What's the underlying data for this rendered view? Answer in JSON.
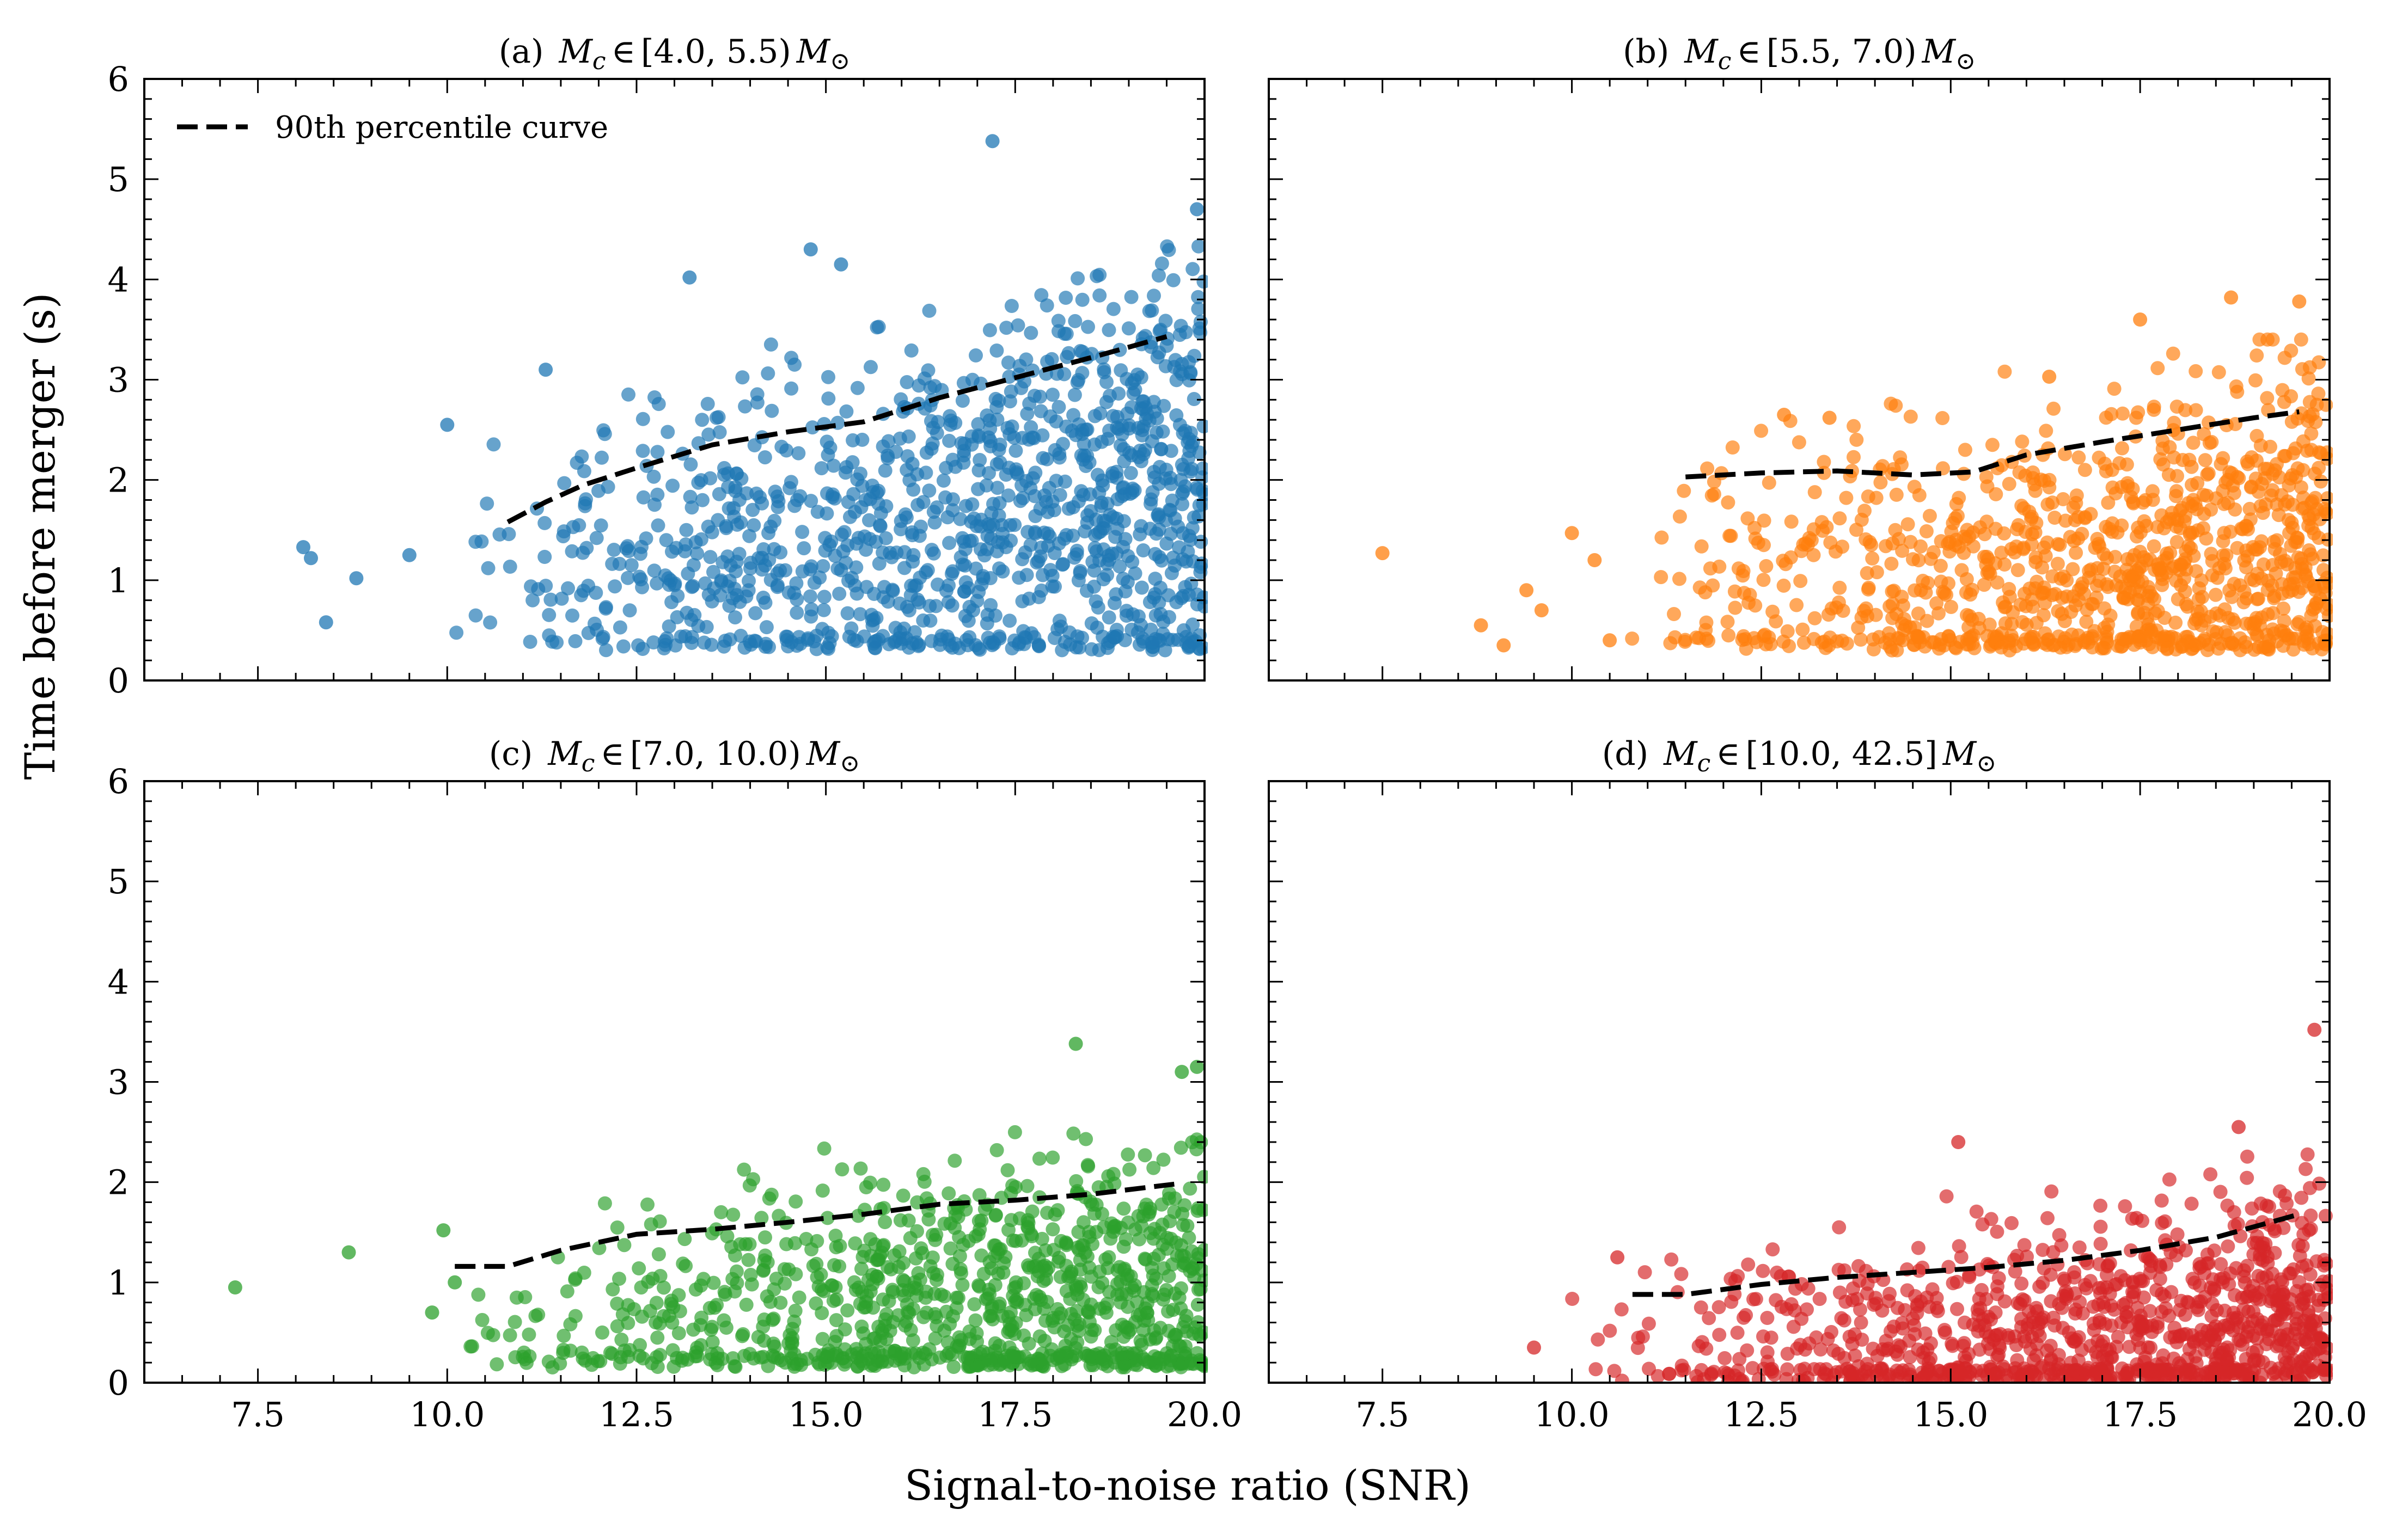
{
  "figure": {
    "ylabel": "Time before merger (s)",
    "xlabel": "Signal-to-noise ratio (SNR)",
    "legend": {
      "label": "90th percentile curve",
      "placement": "top-left",
      "panel": 0
    }
  },
  "chart_data": [
    {
      "type": "scatter",
      "title": "(a)  Mc ∈ [4.0, 5.5) M⊙",
      "title_prefix": "(a)",
      "title_range": "[4.0, 5.5)",
      "color": "#1f77b4",
      "xlim": [
        6.0,
        20.0
      ],
      "ylim": [
        0,
        6
      ],
      "xticks": [
        "7.5",
        "10.0",
        "12.5",
        "15.0",
        "17.5",
        "20.0"
      ],
      "yticks": [
        "0",
        "1",
        "2",
        "3",
        "4",
        "5",
        "6"
      ],
      "show_xticklabels": false,
      "show_yticklabels": true,
      "series": [
        {
          "name": "90th percentile curve",
          "style": "dashed",
          "color": "#000000",
          "x": [
            10.8,
            11.3,
            11.8,
            12.5,
            13.5,
            14.5,
            15.5,
            16.5,
            17.5,
            18.5,
            19.5
          ],
          "y": [
            1.58,
            1.78,
            1.95,
            2.12,
            2.35,
            2.48,
            2.58,
            2.82,
            3.02,
            3.22,
            3.43
          ]
        }
      ],
      "highlight_points": {
        "x": [
          8.1,
          8.2,
          8.4,
          8.8,
          9.5,
          10.0,
          11.3,
          13.2,
          14.8,
          15.2,
          17.2,
          19.9
        ],
        "y": [
          1.33,
          1.22,
          0.58,
          1.02,
          1.25,
          2.55,
          3.1,
          4.02,
          4.3,
          4.15,
          5.38,
          4.7
        ]
      },
      "cloud": {
        "n": 1150,
        "x_range": [
          10.0,
          20.0
        ],
        "y_range": [
          0.3,
          4.7
        ],
        "seed": 11,
        "curve_offset": 0.0
      }
    },
    {
      "type": "scatter",
      "title": "(b)  Mc ∈ [5.5, 7.0) M⊙",
      "title_prefix": "(b)",
      "title_range": "[5.5, 7.0)",
      "color": "#ff7f0e",
      "xlim": [
        6.0,
        20.0
      ],
      "ylim": [
        0,
        6
      ],
      "xticks": [
        "7.5",
        "10.0",
        "12.5",
        "15.0",
        "17.5",
        "20.0"
      ],
      "yticks": [
        "0",
        "1",
        "2",
        "3",
        "4",
        "5",
        "6"
      ],
      "show_xticklabels": false,
      "show_yticklabels": false,
      "series": [
        {
          "name": "90th percentile curve",
          "style": "dashed",
          "color": "#000000",
          "x": [
            11.5,
            12.5,
            13.5,
            14.5,
            15.3,
            16.0,
            17.0,
            18.0,
            19.0,
            19.6
          ],
          "y": [
            2.03,
            2.07,
            2.09,
            2.05,
            2.08,
            2.25,
            2.38,
            2.5,
            2.62,
            2.68
          ]
        }
      ],
      "highlight_points": {
        "x": [
          7.5,
          8.8,
          9.1,
          9.4,
          9.6,
          10.0,
          10.3,
          10.5,
          12.8,
          13.4,
          16.3,
          17.5,
          18.7,
          19.6
        ],
        "y": [
          1.27,
          0.55,
          0.35,
          0.9,
          0.7,
          1.47,
          1.2,
          0.4,
          2.65,
          2.62,
          3.03,
          3.6,
          3.82,
          3.78
        ]
      },
      "cloud": {
        "n": 1050,
        "x_range": [
          10.5,
          20.0
        ],
        "y_range": [
          0.3,
          3.4
        ],
        "seed": 23,
        "curve_offset": -0.6
      }
    },
    {
      "type": "scatter",
      "title": "(c)  Mc ∈ [7.0, 10.0) M⊙",
      "title_prefix": "(c)",
      "title_range": "[7.0, 10.0)",
      "color": "#2ca02c",
      "xlim": [
        6.0,
        20.0
      ],
      "ylim": [
        0,
        6
      ],
      "xticks": [
        "7.5",
        "10.0",
        "12.5",
        "15.0",
        "17.5",
        "20.0"
      ],
      "yticks": [
        "0",
        "1",
        "2",
        "3",
        "4",
        "5",
        "6"
      ],
      "show_xticklabels": true,
      "show_yticklabels": true,
      "series": [
        {
          "name": "90th percentile curve",
          "style": "dashed",
          "color": "#000000",
          "x": [
            10.1,
            10.8,
            11.5,
            12.5,
            13.5,
            14.5,
            15.5,
            16.5,
            17.5,
            18.5,
            19.6
          ],
          "y": [
            1.16,
            1.16,
            1.32,
            1.48,
            1.53,
            1.6,
            1.68,
            1.78,
            1.82,
            1.88,
            1.98
          ]
        }
      ],
      "highlight_points": {
        "x": [
          7.2,
          8.7,
          9.8,
          9.95,
          10.1,
          18.3,
          19.7,
          19.9
        ],
        "y": [
          0.95,
          1.3,
          0.7,
          1.52,
          1.0,
          3.38,
          3.1,
          3.15
        ]
      },
      "cloud": {
        "n": 1000,
        "x_range": [
          10.0,
          20.0
        ],
        "y_range": [
          0.15,
          2.8
        ],
        "seed": 37,
        "curve_offset": -0.75
      }
    },
    {
      "type": "scatter",
      "title": "(d)  Mc ∈ [10.0, 42.5] M⊙",
      "title_prefix": "(d)",
      "title_range": "[10.0, 42.5]",
      "color": "#d62728",
      "xlim": [
        6.0,
        20.0
      ],
      "ylim": [
        0,
        6
      ],
      "xticks": [
        "7.5",
        "10.0",
        "12.5",
        "15.0",
        "17.5",
        "20.0"
      ],
      "yticks": [
        "0",
        "1",
        "2",
        "3",
        "4",
        "5",
        "6"
      ],
      "show_xticklabels": true,
      "show_yticklabels": false,
      "series": [
        {
          "name": "90th percentile curve",
          "style": "dashed",
          "color": "#000000",
          "x": [
            10.8,
            11.5,
            12.5,
            13.5,
            14.5,
            15.5,
            16.5,
            17.5,
            18.5,
            19.6
          ],
          "y": [
            0.88,
            0.88,
            0.98,
            1.05,
            1.1,
            1.15,
            1.22,
            1.32,
            1.45,
            1.68
          ]
        }
      ],
      "highlight_points": {
        "x": [
          9.5,
          10.6,
          15.1,
          18.8,
          19.8
        ],
        "y": [
          0.35,
          1.25,
          2.4,
          2.55,
          3.52
        ]
      },
      "cloud": {
        "n": 1050,
        "x_range": [
          9.8,
          20.0
        ],
        "y_range": [
          0.0,
          2.3
        ],
        "seed": 51,
        "curve_offset": -0.85
      }
    }
  ]
}
